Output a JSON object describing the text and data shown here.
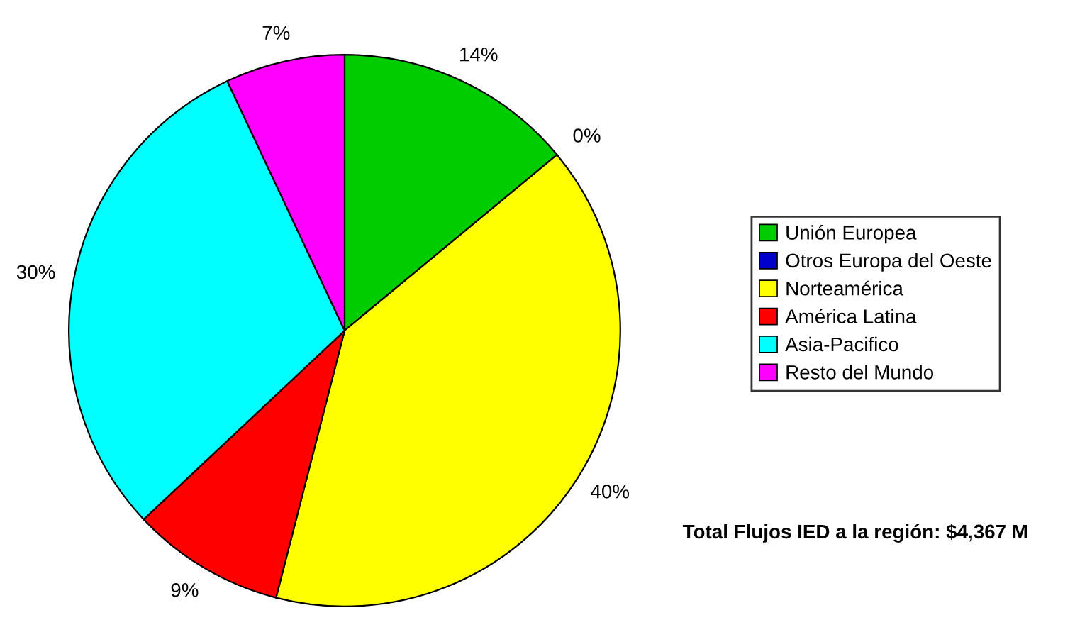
{
  "chart_data": {
    "type": "pie",
    "categories": [
      "Unión Europea",
      "Otros Europa del Oeste",
      "Norteamérica",
      "América Latina",
      "Asia-Pacifico",
      "Resto del Mundo"
    ],
    "values": [
      14,
      0,
      40,
      9,
      30,
      7
    ],
    "value_labels": [
      "14%",
      "0%",
      "40%",
      "9%",
      "30%",
      "7%"
    ],
    "colors": [
      "#00cc00",
      "#0000cc",
      "#ffff00",
      "#ff0000",
      "#00ffff",
      "#ff00ff"
    ],
    "legend": "right",
    "annotations": [
      "Total Flujos IED a la región: $4,367 M"
    ]
  }
}
